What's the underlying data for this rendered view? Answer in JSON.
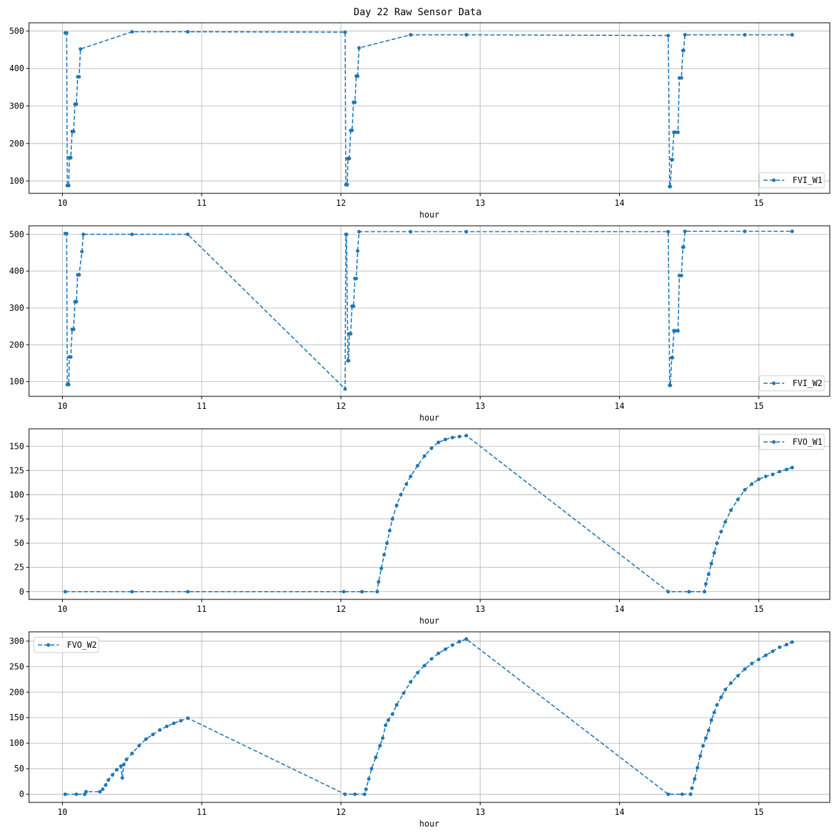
{
  "figure_title": "Day 22 Raw Sensor Data",
  "chart_data": [
    {
      "type": "line",
      "xlabel": "hour",
      "ylabel": "",
      "xlim": [
        9.76,
        15.51
      ],
      "ylim": [
        67,
        522
      ],
      "xticks": [
        10,
        11,
        12,
        13,
        14,
        15
      ],
      "yticks": [
        100,
        200,
        300,
        400,
        500
      ],
      "grid": true,
      "legend": "bottom-right",
      "series": [
        {
          "name": "FVI_W1",
          "color": "#1f77b4",
          "x": [
            10.02,
            10.03,
            10.035,
            10.045,
            10.05,
            10.06,
            10.07,
            10.08,
            10.09,
            10.1,
            10.11,
            10.12,
            10.13,
            10.5,
            10.9,
            12.03,
            12.035,
            12.045,
            12.05,
            12.06,
            12.07,
            12.08,
            12.09,
            12.1,
            12.11,
            12.12,
            12.13,
            12.5,
            12.9,
            14.35,
            14.36,
            14.365,
            14.375,
            14.38,
            14.39,
            14.4,
            14.42,
            14.43,
            14.445,
            14.455,
            14.46,
            14.47,
            14.9,
            15.24
          ],
          "y": [
            495,
            495,
            88,
            88,
            162,
            162,
            232,
            232,
            305,
            305,
            378,
            378,
            452,
            498,
            498,
            497,
            90,
            90,
            160,
            160,
            235,
            235,
            310,
            310,
            380,
            380,
            455,
            490,
            490,
            488,
            85,
            85,
            157,
            157,
            230,
            230,
            230,
            375,
            375,
            448,
            448,
            490,
            490,
            490
          ]
        }
      ]
    },
    {
      "type": "line",
      "xlabel": "hour",
      "ylabel": "",
      "xlim": [
        9.76,
        15.51
      ],
      "ylim": [
        60,
        523
      ],
      "xticks": [
        10,
        11,
        12,
        13,
        14,
        15
      ],
      "yticks": [
        100,
        200,
        300,
        400,
        500
      ],
      "grid": true,
      "legend": "bottom-right",
      "series": [
        {
          "name": "FVI_W2",
          "color": "#1f77b4",
          "x": [
            10.02,
            10.03,
            10.035,
            10.045,
            10.05,
            10.06,
            10.07,
            10.08,
            10.09,
            10.1,
            10.11,
            10.12,
            10.14,
            10.15,
            10.5,
            10.9,
            12.03,
            12.035,
            12.04,
            12.05,
            12.055,
            12.06,
            12.07,
            12.08,
            12.09,
            12.1,
            12.11,
            12.12,
            12.13,
            12.5,
            12.9,
            14.35,
            14.36,
            14.365,
            14.375,
            14.38,
            14.39,
            14.4,
            14.42,
            14.43,
            14.445,
            14.455,
            14.46,
            14.47,
            14.9,
            15.24
          ],
          "y": [
            502,
            502,
            92,
            92,
            167,
            167,
            242,
            242,
            317,
            317,
            390,
            390,
            453,
            500,
            500,
            500,
            80,
            500,
            500,
            157,
            157,
            230,
            230,
            305,
            305,
            380,
            380,
            455,
            507,
            507,
            507,
            507,
            90,
            90,
            165,
            165,
            238,
            238,
            238,
            388,
            388,
            465,
            465,
            508,
            508,
            508
          ]
        }
      ]
    },
    {
      "type": "line",
      "xlabel": "hour",
      "ylabel": "",
      "xlim": [
        9.76,
        15.51
      ],
      "ylim": [
        -8,
        168
      ],
      "xticks": [
        10,
        11,
        12,
        13,
        14,
        15
      ],
      "yticks": [
        0,
        25,
        50,
        75,
        100,
        125,
        150
      ],
      "grid": true,
      "legend": "top-right",
      "series": [
        {
          "name": "FVO_W1",
          "color": "#1f77b4",
          "x": [
            10.02,
            10.5,
            10.9,
            12.02,
            12.15,
            12.26,
            12.27,
            12.29,
            12.31,
            12.33,
            12.35,
            12.37,
            12.4,
            12.43,
            12.47,
            12.5,
            12.55,
            12.6,
            12.65,
            12.7,
            12.75,
            12.8,
            12.85,
            12.9,
            14.35,
            14.5,
            14.61,
            14.62,
            14.64,
            14.66,
            14.68,
            14.7,
            14.73,
            14.76,
            14.8,
            14.85,
            14.9,
            14.95,
            15.0,
            15.05,
            15.1,
            15.15,
            15.2,
            15.24
          ],
          "y": [
            0,
            0,
            0,
            0,
            0,
            0,
            10,
            24,
            38,
            50,
            63,
            75,
            89,
            100,
            111,
            119,
            130,
            140,
            148,
            154,
            157,
            159,
            160,
            161,
            0,
            0,
            0,
            8,
            18,
            29,
            40,
            50,
            62,
            72,
            84,
            95,
            105,
            111,
            116,
            119,
            121,
            124,
            126,
            128
          ]
        }
      ]
    },
    {
      "type": "line",
      "xlabel": "hour",
      "ylabel": "",
      "xlim": [
        9.76,
        15.51
      ],
      "ylim": [
        -16,
        318
      ],
      "xticks": [
        10,
        11,
        12,
        13,
        14,
        15
      ],
      "yticks": [
        0,
        50,
        100,
        150,
        200,
        250,
        300
      ],
      "grid": true,
      "legend": "top-left",
      "series": [
        {
          "name": "FVO_W2",
          "color": "#1f77b4",
          "x": [
            10.02,
            10.1,
            10.16,
            10.17,
            10.27,
            10.29,
            10.31,
            10.33,
            10.36,
            10.39,
            10.42,
            10.43,
            10.44,
            10.46,
            10.5,
            10.55,
            10.6,
            10.65,
            10.7,
            10.75,
            10.8,
            10.85,
            10.9,
            12.03,
            12.1,
            12.17,
            12.18,
            12.2,
            12.22,
            12.25,
            12.28,
            12.3,
            12.32,
            12.34,
            12.37,
            12.4,
            12.45,
            12.5,
            12.55,
            12.6,
            12.65,
            12.7,
            12.75,
            12.8,
            12.85,
            12.9,
            14.35,
            14.45,
            14.51,
            14.52,
            14.54,
            14.56,
            14.58,
            14.6,
            14.62,
            14.64,
            14.66,
            14.68,
            14.7,
            14.73,
            14.76,
            14.8,
            14.85,
            14.9,
            14.95,
            15.0,
            15.05,
            15.1,
            15.15,
            15.2,
            15.24
          ],
          "y": [
            0,
            0,
            0,
            5,
            5,
            10,
            18,
            28,
            38,
            48,
            55,
            32,
            58,
            68,
            80,
            95,
            108,
            117,
            126,
            133,
            139,
            144,
            149,
            0,
            0,
            0,
            10,
            30,
            50,
            72,
            95,
            110,
            135,
            145,
            157,
            175,
            198,
            220,
            238,
            252,
            265,
            276,
            284,
            292,
            299,
            304,
            0,
            0,
            0,
            12,
            30,
            52,
            75,
            95,
            110,
            125,
            145,
            160,
            175,
            190,
            205,
            218,
            232,
            245,
            256,
            264,
            272,
            280,
            288,
            293,
            298
          ]
        }
      ]
    }
  ]
}
